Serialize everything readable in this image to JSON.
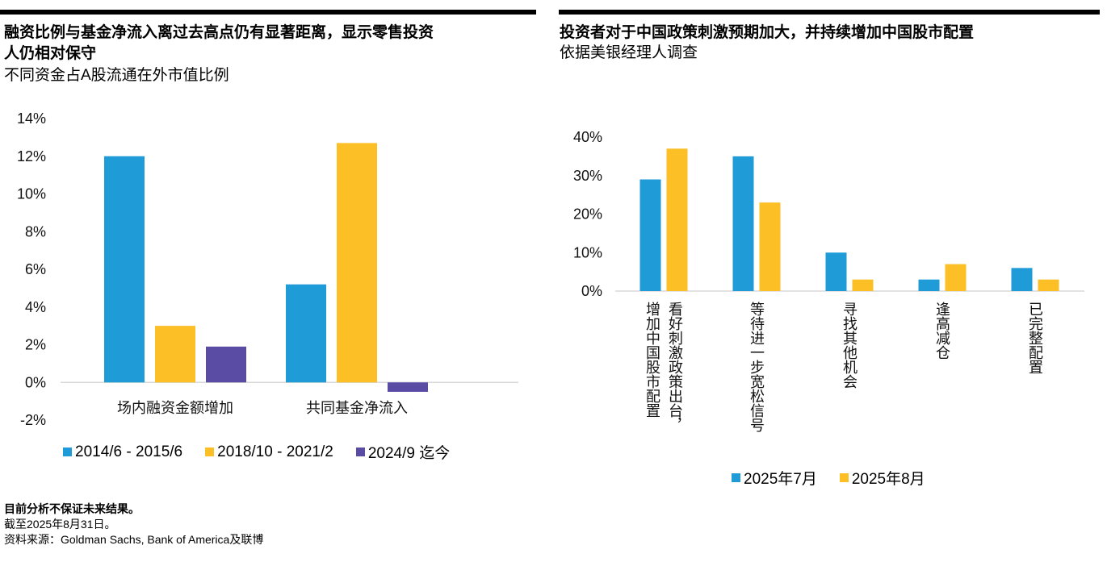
{
  "left": {
    "title": "融资比例与基金净流入离过去高点仍有显著距离，显示零售投资人仍相对保守",
    "title_line1": "融资比例与基金净流入离过去高点仍有显著距离，显示零售投资",
    "title_line2": "人仍相对保守",
    "subtitle": "不同资金占A股流通在外市值比例"
  },
  "right": {
    "title": "投资者对于中国政策刺激预期加大，并持续增加中国股市配置",
    "subtitle": "依据美银经理人调查"
  },
  "notes": {
    "disclaimer": "目前分析不保证未来结果。",
    "as_of": "截至2025年8月31日。",
    "source": "资料来源：Goldman Sachs, Bank of America及联博"
  },
  "colors": {
    "blue": "#1f9bd7",
    "yellow": "#fdbf26",
    "purple": "#5a4ba5",
    "axis": "#d9d9d9"
  },
  "chart_data": [
    {
      "type": "bar",
      "title": "融资比例与基金净流入离过去高点仍有显著距离，显示零售投资人仍相对保守",
      "subtitle": "不同资金占A股流通在外市值比例",
      "categories": [
        "场内融资金额增加",
        "共同基金净流入"
      ],
      "series": [
        {
          "name": "2014/6 - 2015/6",
          "color": "#1f9bd7",
          "values": [
            12.0,
            5.2
          ]
        },
        {
          "name": "2018/10 - 2021/2",
          "color": "#fdbf26",
          "values": [
            3.0,
            12.7
          ]
        },
        {
          "name": "2024/9 迄今",
          "color": "#5a4ba5",
          "values": [
            1.9,
            -0.5
          ]
        }
      ],
      "ylim": [
        -2,
        14
      ],
      "yticks": [
        14,
        12,
        10,
        8,
        6,
        4,
        2,
        0,
        -2
      ],
      "ytick_labels": [
        "14%",
        "12%",
        "10%",
        "8%",
        "6%",
        "4%",
        "2%",
        "0%",
        "-2%"
      ],
      "xlabel": "",
      "ylabel": "",
      "grid": false,
      "legend": "bottom"
    },
    {
      "type": "bar",
      "title": "投资者对于中国政策刺激预期加大，并持续增加中国股市配置",
      "subtitle": "依据美银经理人调查",
      "categories": [
        "看好刺激政策出台，增加中国股市配置",
        "等待进一步宽松信号",
        "寻找其他机会",
        "逢高减仓",
        "已完整配置"
      ],
      "category_lines": [
        [
          "看好刺激政策出台，",
          "增加中国股市配置"
        ],
        [
          "等待进一步宽松信号"
        ],
        [
          "寻找其他机会"
        ],
        [
          "逢高减仓"
        ],
        [
          "已完整配置"
        ]
      ],
      "series": [
        {
          "name": "2025年7月",
          "color": "#1f9bd7",
          "values": [
            29,
            35,
            10,
            3,
            6
          ]
        },
        {
          "name": "2025年8月",
          "color": "#fdbf26",
          "values": [
            37,
            23,
            3,
            7,
            3
          ]
        }
      ],
      "ylim": [
        0,
        40
      ],
      "yticks": [
        40,
        30,
        20,
        10,
        0
      ],
      "ytick_labels": [
        "40%",
        "30%",
        "20%",
        "10%",
        "0%"
      ],
      "xlabel": "",
      "ylabel": "",
      "grid": false,
      "legend": "bottom"
    }
  ]
}
